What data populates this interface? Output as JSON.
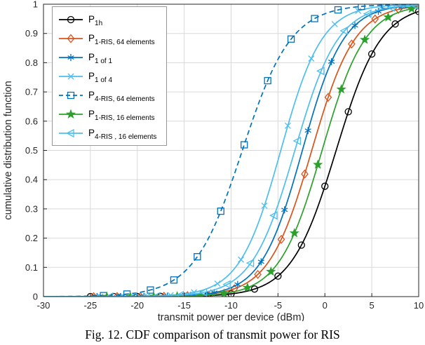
{
  "figure": {
    "caption": "Fig. 12. CDF comparison of transmit power for RIS",
    "background": "#ffffff",
    "grid_color": "#d9d9d9",
    "axis_color": "#262626"
  },
  "chart_data": {
    "type": "line",
    "title": "",
    "xlabel": "transmit power per device (dBm)",
    "ylabel": "cumulative distribution function",
    "xlim": [
      -30,
      10
    ],
    "ylim": [
      0,
      1
    ],
    "xticks": [
      -30,
      -25,
      -20,
      -15,
      -10,
      -5,
      0,
      5,
      10
    ],
    "xtick_labels": [
      "-30",
      "-25",
      "-20",
      "-15",
      "-10",
      "-5",
      "0",
      "5",
      "10"
    ],
    "yticks": [
      0,
      0.1,
      0.2,
      0.3,
      0.4,
      0.5,
      0.6,
      0.7,
      0.8,
      0.9,
      1
    ],
    "ytick_labels": [
      "0",
      "0.1",
      "0.2",
      "0.3",
      "0.4",
      "0.5",
      "0.6",
      "0.7",
      "0.8",
      "0.9",
      "1"
    ],
    "grid": true,
    "legend_position": "top-left",
    "x_sample": [
      -30,
      -25,
      -20,
      -17.5,
      -15,
      -12.5,
      -10,
      -7.5,
      -5,
      -2.5,
      0,
      2.5,
      5,
      7.5,
      10
    ],
    "series": [
      {
        "key": "p-1h",
        "legend_main": "P",
        "legend_sub": "1h",
        "color": "#000000",
        "line_style": "solid",
        "marker": "circle",
        "logistic": {
          "mu": 1.2,
          "s": 2.4
        },
        "values": [
          0,
          0,
          0,
          0,
          0.001,
          0.003,
          0.009,
          0.026,
          0.07,
          0.177,
          0.378,
          0.632,
          0.829,
          0.933,
          0.975
        ]
      },
      {
        "key": "p-1ris-64",
        "legend_main": "P",
        "legend_sub": "1-RIS, 64 elements",
        "color": "#d95319",
        "line_style": "solid",
        "marker": "diamond",
        "logistic": {
          "mu": -1.4,
          "s": 2.3
        },
        "values": [
          0,
          0,
          0,
          0.001,
          0.003,
          0.008,
          0.023,
          0.066,
          0.173,
          0.383,
          0.648,
          0.845,
          0.942,
          0.979,
          0.993
        ]
      },
      {
        "key": "p-1of1",
        "legend_main": "P",
        "legend_sub": "1 of 1",
        "color": "#0072bd",
        "line_style": "solid",
        "marker": "asterisk",
        "logistic": {
          "mu": -2.4,
          "s": 2.2
        },
        "values": [
          0,
          0,
          0,
          0.001,
          0.003,
          0.01,
          0.031,
          0.09,
          0.235,
          0.489,
          0.748,
          0.903,
          0.966,
          0.989,
          0.996
        ]
      },
      {
        "key": "p-1of4",
        "legend_main": "P",
        "legend_sub": "1 of 4",
        "color": "#4dbeee",
        "line_style": "solid",
        "marker": "x",
        "logistic": {
          "mu": -4.7,
          "s": 2.2
        },
        "values": [
          0,
          0,
          0.001,
          0.003,
          0.009,
          0.028,
          0.082,
          0.219,
          0.466,
          0.731,
          0.894,
          0.963,
          0.988,
          0.996,
          0.999
        ]
      },
      {
        "key": "p-4ris-64",
        "legend_main": "P",
        "legend_sub": "4-RIS, 64 elements",
        "color": "#0072bd",
        "line_style": "dashed",
        "marker": "square",
        "logistic": {
          "mu": -8.8,
          "s": 2.6
        },
        "values": [
          0,
          0.002,
          0.013,
          0.034,
          0.084,
          0.194,
          0.387,
          0.622,
          0.812,
          0.918,
          0.967,
          0.987,
          0.995,
          0.998,
          0.999
        ]
      },
      {
        "key": "p-1ris-16",
        "legend_main": "P",
        "legend_sub": "1-RIS, 16 elements",
        "color": "#2ca02c",
        "line_style": "solid",
        "marker": "star",
        "logistic": {
          "mu": -0.3,
          "s": 2.3
        },
        "values": [
          0,
          0,
          0,
          0.001,
          0.002,
          0.005,
          0.014,
          0.042,
          0.115,
          0.277,
          0.533,
          0.772,
          0.909,
          0.967,
          0.989
        ]
      },
      {
        "key": "p-4ris-16",
        "legend_main": "P",
        "legend_sub": "4-RIS , 16 elements",
        "color": "#4dbeee",
        "line_style": "solid",
        "marker": "triangle-left",
        "logistic": {
          "mu": -3.2,
          "s": 2.3
        },
        "values": [
          0,
          0,
          0.001,
          0.002,
          0.006,
          0.017,
          0.049,
          0.133,
          0.314,
          0.575,
          0.801,
          0.923,
          0.972,
          0.991,
          0.997
        ]
      }
    ]
  }
}
